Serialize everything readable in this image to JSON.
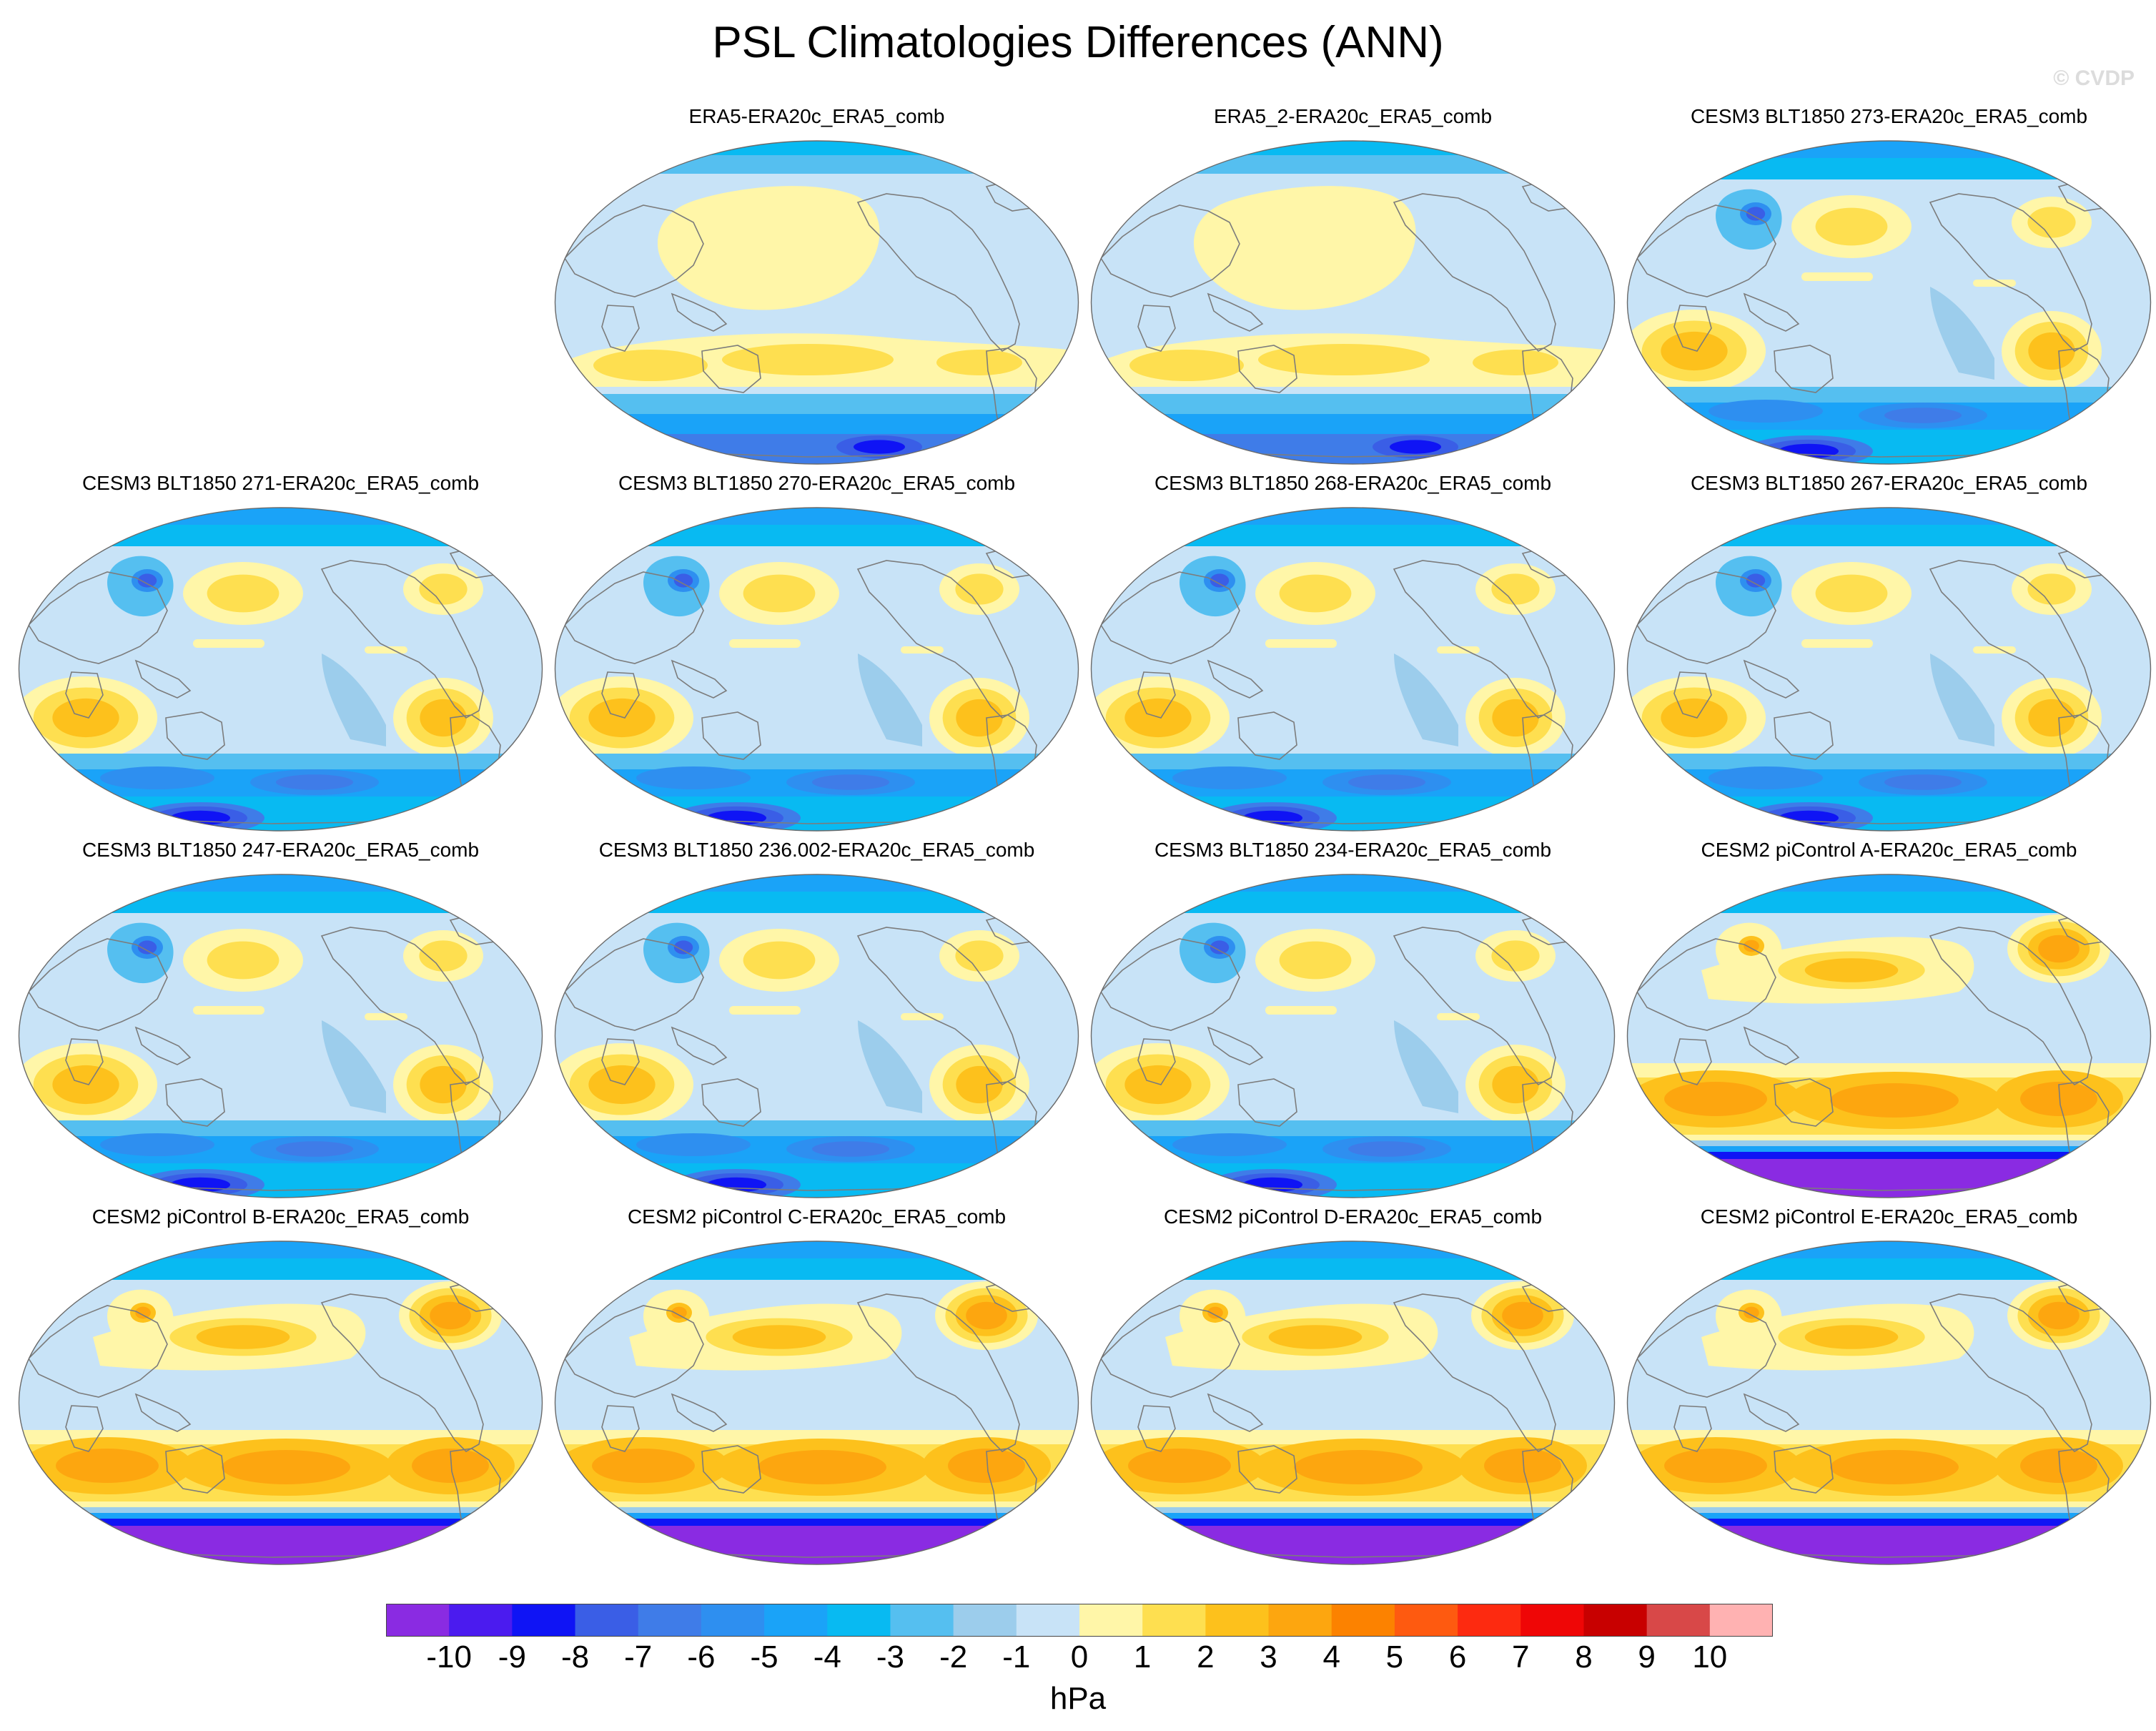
{
  "title": "PSL Climatologies Differences (ANN)",
  "watermark": "© CVDP",
  "colorbar": {
    "units": "hPa",
    "ticks": [
      "-10",
      "-9",
      "-8",
      "-7",
      "-6",
      "-5",
      "-4",
      "-3",
      "-2",
      "-1",
      "0",
      "1",
      "2",
      "3",
      "4",
      "5",
      "6",
      "7",
      "8",
      "9",
      "10"
    ],
    "colors": [
      "#8a2be2",
      "#4b1bef",
      "#0f14f5",
      "#3a5ee6",
      "#3f7ce8",
      "#2e8ff0",
      "#1aa3f8",
      "#08baf2",
      "#55bff0",
      "#9ccdec",
      "#c8e3f7",
      "#fff6a8",
      "#fedf50",
      "#fdc11c",
      "#fda60f",
      "#fc8200",
      "#fe5a10",
      "#fd2a10",
      "#ef0606",
      "#c80000",
      "#d84848",
      "#ffb2b2"
    ]
  },
  "panels": [
    {
      "label": "ERA5-ERA20c_ERA5_comb",
      "row": 0,
      "col": 1,
      "style": "era5"
    },
    {
      "label": "ERA5_2-ERA20c_ERA5_comb",
      "row": 0,
      "col": 2,
      "style": "era5"
    },
    {
      "label": "CESM3 BLT1850 273-ERA20c_ERA5_comb",
      "row": 0,
      "col": 3,
      "style": "cesm3"
    },
    {
      "label": "CESM3 BLT1850 271-ERA20c_ERA5_comb",
      "row": 1,
      "col": 0,
      "style": "cesm3"
    },
    {
      "label": "CESM3 BLT1850 270-ERA20c_ERA5_comb",
      "row": 1,
      "col": 1,
      "style": "cesm3"
    },
    {
      "label": "CESM3 BLT1850 268-ERA20c_ERA5_comb",
      "row": 1,
      "col": 2,
      "style": "cesm3"
    },
    {
      "label": "CESM3 BLT1850 267-ERA20c_ERA5_comb",
      "row": 1,
      "col": 3,
      "style": "cesm3"
    },
    {
      "label": "CESM3 BLT1850 247-ERA20c_ERA5_comb",
      "row": 2,
      "col": 0,
      "style": "cesm3"
    },
    {
      "label": "CESM3 BLT1850 236.002-ERA20c_ERA5_comb",
      "row": 2,
      "col": 1,
      "style": "cesm3"
    },
    {
      "label": "CESM3 BLT1850 234-ERA20c_ERA5_comb",
      "row": 2,
      "col": 2,
      "style": "cesm3"
    },
    {
      "label": "CESM2 piControl A-ERA20c_ERA5_comb",
      "row": 2,
      "col": 3,
      "style": "cesm2"
    },
    {
      "label": "CESM2 piControl B-ERA20c_ERA5_comb",
      "row": 3,
      "col": 0,
      "style": "cesm2"
    },
    {
      "label": "CESM2 piControl C-ERA20c_ERA5_comb",
      "row": 3,
      "col": 1,
      "style": "cesm2"
    },
    {
      "label": "CESM2 piControl D-ERA20c_ERA5_comb",
      "row": 3,
      "col": 2,
      "style": "cesm2"
    },
    {
      "label": "CESM2 piControl E-ERA20c_ERA5_comb",
      "row": 3,
      "col": 3,
      "style": "cesm2"
    }
  ]
}
